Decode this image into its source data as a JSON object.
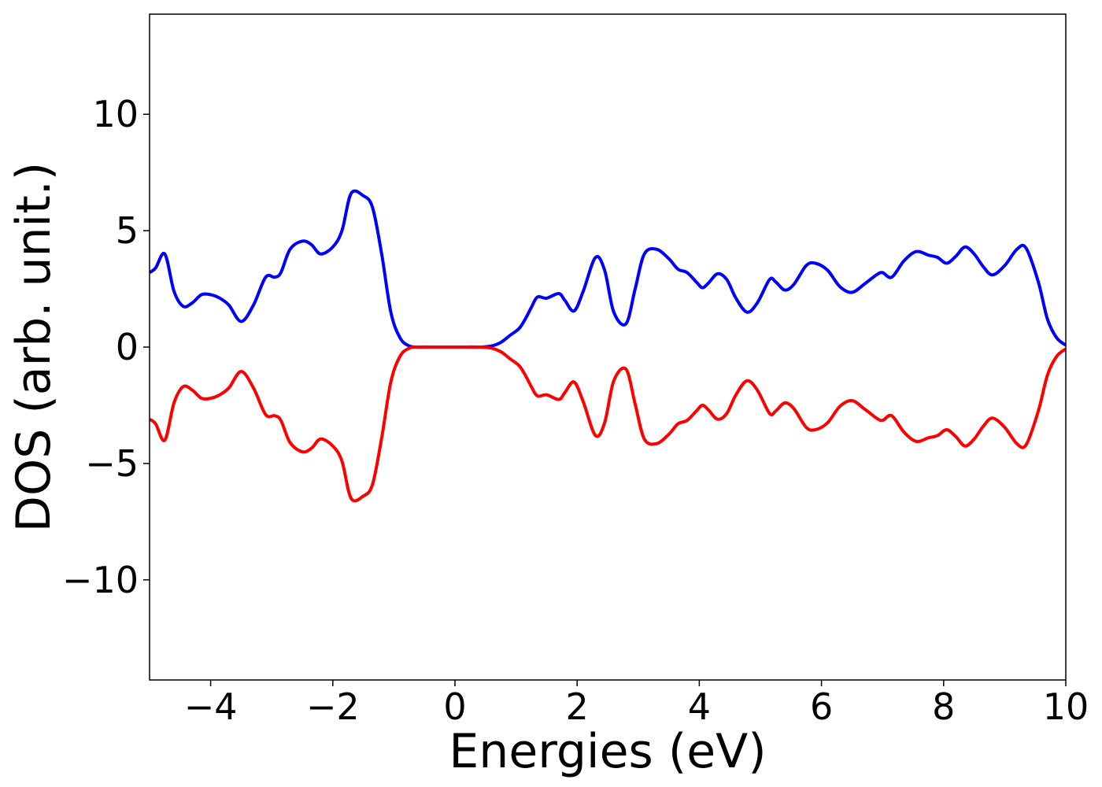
{
  "chart_data": {
    "type": "line",
    "title": "",
    "xlabel": "Energies (eV)",
    "ylabel": "DOS (arb. unit.)",
    "xlim": [
      -5,
      10
    ],
    "ylim": [
      -14.3,
      14.3
    ],
    "grid": false,
    "legend": "none",
    "x_ticks": [
      {
        "value": -4,
        "label": "−4"
      },
      {
        "value": -2,
        "label": "−2"
      },
      {
        "value": 0,
        "label": "0"
      },
      {
        "value": 2,
        "label": "2"
      },
      {
        "value": 4,
        "label": "4"
      },
      {
        "value": 6,
        "label": "6"
      },
      {
        "value": 8,
        "label": "8"
      },
      {
        "value": 10,
        "label": "10"
      }
    ],
    "y_ticks": [
      {
        "value": 10,
        "label": "10"
      },
      {
        "value": 5,
        "label": "5"
      },
      {
        "value": 0,
        "label": "0"
      },
      {
        "value": -5,
        "label": "−5"
      },
      {
        "value": -10,
        "label": "−10"
      }
    ],
    "x": [
      -5.0,
      -4.9,
      -4.75,
      -4.6,
      -4.45,
      -4.3,
      -4.15,
      -4.0,
      -3.85,
      -3.7,
      -3.5,
      -3.3,
      -3.1,
      -2.95,
      -2.85,
      -2.7,
      -2.5,
      -2.35,
      -2.2,
      -2.0,
      -1.85,
      -1.7,
      -1.5,
      -1.35,
      -1.2,
      -1.05,
      -0.9,
      -0.75,
      -0.6,
      -0.4,
      0.0,
      0.4,
      0.6,
      0.75,
      0.9,
      1.05,
      1.15,
      1.25,
      1.35,
      1.5,
      1.7,
      1.8,
      1.95,
      2.1,
      2.3,
      2.45,
      2.6,
      2.8,
      2.95,
      3.1,
      3.3,
      3.5,
      3.65,
      3.8,
      3.95,
      4.05,
      4.15,
      4.3,
      4.45,
      4.6,
      4.78,
      4.95,
      5.15,
      5.25,
      5.4,
      5.55,
      5.75,
      5.9,
      6.1,
      6.3,
      6.5,
      6.7,
      6.9,
      7.0,
      7.15,
      7.35,
      7.55,
      7.75,
      7.9,
      8.05,
      8.2,
      8.35,
      8.5,
      8.65,
      8.8,
      9.0,
      9.2,
      9.35,
      9.55,
      9.7,
      9.85,
      10.0
    ],
    "series": [
      {
        "color": "#0000ff",
        "values": [
          3.2,
          3.4,
          4.0,
          2.4,
          1.75,
          1.9,
          2.25,
          2.25,
          2.1,
          1.8,
          1.1,
          1.8,
          3.0,
          3.0,
          3.2,
          4.2,
          4.55,
          4.4,
          4.0,
          4.3,
          5.0,
          6.6,
          6.5,
          6.0,
          4.0,
          1.5,
          0.4,
          0.05,
          0.0,
          0.0,
          0.0,
          0.0,
          0.05,
          0.2,
          0.5,
          0.8,
          1.2,
          1.7,
          2.15,
          2.1,
          2.3,
          2.0,
          1.55,
          2.4,
          3.85,
          3.3,
          1.5,
          1.0,
          2.5,
          4.0,
          4.2,
          3.8,
          3.35,
          3.2,
          2.8,
          2.55,
          2.75,
          3.15,
          2.9,
          2.1,
          1.5,
          1.9,
          2.9,
          2.8,
          2.45,
          2.7,
          3.5,
          3.6,
          3.3,
          2.6,
          2.35,
          2.7,
          3.1,
          3.2,
          3.0,
          3.7,
          4.1,
          3.95,
          3.85,
          3.6,
          3.9,
          4.3,
          4.0,
          3.45,
          3.1,
          3.5,
          4.2,
          4.25,
          2.8,
          1.2,
          0.4,
          0.08
        ]
      },
      {
        "color": "#ff0000",
        "values": [
          -3.1,
          -3.3,
          -4.0,
          -2.4,
          -1.7,
          -1.85,
          -2.2,
          -2.2,
          -2.05,
          -1.75,
          -1.05,
          -1.75,
          -2.9,
          -2.95,
          -3.15,
          -4.1,
          -4.5,
          -4.35,
          -3.95,
          -4.25,
          -4.9,
          -6.5,
          -6.4,
          -5.9,
          -3.9,
          -1.5,
          -0.4,
          -0.05,
          0.0,
          0.0,
          0.0,
          0.0,
          -0.05,
          -0.2,
          -0.5,
          -0.8,
          -1.2,
          -1.7,
          -2.1,
          -2.05,
          -2.25,
          -1.95,
          -1.5,
          -2.35,
          -3.8,
          -3.25,
          -1.45,
          -0.95,
          -2.45,
          -3.95,
          -4.15,
          -3.75,
          -3.3,
          -3.15,
          -2.75,
          -2.5,
          -2.7,
          -3.1,
          -2.85,
          -2.05,
          -1.45,
          -1.85,
          -2.85,
          -2.75,
          -2.4,
          -2.65,
          -3.45,
          -3.55,
          -3.25,
          -2.55,
          -2.3,
          -2.65,
          -3.05,
          -3.15,
          -2.95,
          -3.65,
          -4.05,
          -3.9,
          -3.8,
          -3.55,
          -3.85,
          -4.25,
          -3.95,
          -3.4,
          -3.05,
          -3.45,
          -4.15,
          -4.2,
          -2.75,
          -1.2,
          -0.4,
          -0.08
        ]
      }
    ]
  }
}
